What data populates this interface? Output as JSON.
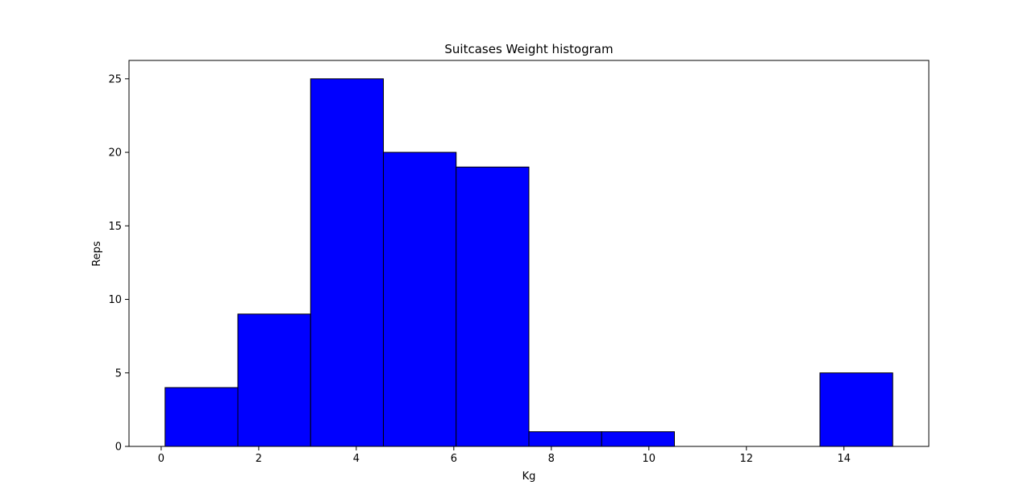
{
  "chart_data": {
    "type": "bar",
    "title": "Suitcases Weight histogram",
    "xlabel": "Kg",
    "ylabel": "Reps",
    "bin_edges": [
      0.08,
      1.572,
      3.064,
      4.556,
      6.048,
      7.54,
      9.032,
      10.524,
      12.016,
      13.508,
      15.0
    ],
    "values": [
      4,
      9,
      25,
      20,
      19,
      1,
      1,
      0,
      0,
      5
    ],
    "xlim": [
      -0.66,
      15.74
    ],
    "ylim": [
      0,
      26.25
    ],
    "xticks": [
      0,
      2,
      4,
      6,
      8,
      10,
      12,
      14
    ],
    "yticks": [
      0,
      5,
      10,
      15,
      20,
      25
    ],
    "bar_color": "#0000ff",
    "edge_color": "#000000",
    "grid": false,
    "legend": "none"
  }
}
